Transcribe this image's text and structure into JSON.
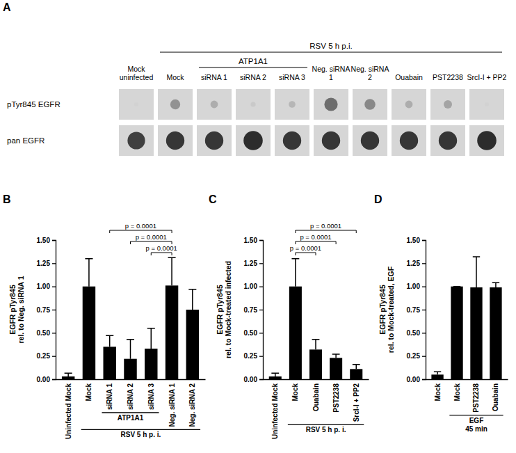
{
  "chart_data": [
    {
      "type": "dot_blot",
      "title": "A",
      "categories": [
        "Mock uninfected",
        "Mock",
        "siRNA 1",
        "siRNA 2",
        "siRNA 3",
        "Neg. siRNA 1",
        "Neg. siRNA 2",
        "Ouabain",
        "PST2238",
        "SrcI-I + PP2"
      ],
      "rows": [
        "pTyr845 EGFR",
        "pan EGFR"
      ],
      "cells": [
        [
          0.0,
          0.35,
          0.2,
          0.05,
          0.15,
          0.55,
          0.4,
          0.2,
          0.25,
          0.0
        ],
        [
          0.8,
          0.85,
          0.85,
          0.9,
          0.85,
          0.85,
          0.85,
          0.85,
          0.85,
          0.9
        ]
      ],
      "groups": [
        {
          "label": [
            "ATP1A1"
          ],
          "from": 2,
          "to": 4
        },
        {
          "label": [
            "RSV 5 h p.i."
          ],
          "from": 1,
          "to": 9
        }
      ]
    },
    {
      "type": "bar",
      "title": "B",
      "categories": [
        "Uninfected Mock",
        "Mock",
        "siRNA 1",
        "siRNA 2",
        "siRNA 3",
        "Neg. siRNA 1",
        "Neg. siRNA 2"
      ],
      "values": [
        0.03,
        1.0,
        0.35,
        0.22,
        0.33,
        1.01,
        0.75
      ],
      "errors": [
        0.035,
        0.3,
        0.12,
        0.21,
        0.22,
        0.3,
        0.22
      ],
      "color": "#000000",
      "ylim": [
        0,
        1.5
      ],
      "yticks": [
        {
          "value": 0,
          "label": "0.00"
        },
        {
          "value": 0.25,
          "label": "0.25"
        },
        {
          "value": 0.5,
          "label": "0.50"
        },
        {
          "value": 0.75,
          "label": "0.75"
        },
        {
          "value": 1,
          "label": "1.00"
        },
        {
          "value": 1.25,
          "label": "1.25"
        },
        {
          "value": 1.5,
          "label": "1.50"
        }
      ],
      "y_label": [
        "EGFR pTyr845",
        "rel. to Neg. siRNA 1"
      ],
      "groups": [
        {
          "label": [
            "ATP1A1"
          ],
          "from": 2,
          "to": 4
        },
        {
          "label": [
            "RSV 5 h p. i."
          ],
          "from": 1,
          "to": 6
        }
      ],
      "comparisons": [
        {
          "label": "p = 0.0001",
          "from": 4,
          "to": 5
        },
        {
          "label": "p = 0.0001",
          "from": 3,
          "to": 5
        },
        {
          "label": "p = 0.0001",
          "from": 2,
          "to": 5
        }
      ]
    },
    {
      "type": "bar",
      "title": "C",
      "categories": [
        "Uninfected Mock",
        "Mock",
        "Ouabain",
        "PST2238",
        "SrcI-I + PP2"
      ],
      "values": [
        0.03,
        1.0,
        0.32,
        0.23,
        0.11
      ],
      "errors": [
        0.035,
        0.3,
        0.11,
        0.04,
        0.05
      ],
      "color": "#000000",
      "ylim": [
        0,
        1.5
      ],
      "yticks": [
        {
          "value": 0,
          "label": "0.00"
        },
        {
          "value": 0.25,
          "label": "0.25"
        },
        {
          "value": 0.5,
          "label": "0.50"
        },
        {
          "value": 0.75,
          "label": "0.75"
        },
        {
          "value": 1,
          "label": "1.00"
        },
        {
          "value": 1.25,
          "label": "1.25"
        },
        {
          "value": 1.5,
          "label": "1.50"
        }
      ],
      "y_label": [
        "EGFR pTyr845",
        "rel. to Mock-treated infected"
      ],
      "groups": [
        {
          "label": [
            "RSV 5 h p. i."
          ],
          "from": 1,
          "to": 4
        }
      ],
      "comparisons": [
        {
          "label": "p = 0.0001",
          "from": 1,
          "to": 2
        },
        {
          "label": "p = 0.0001",
          "from": 1,
          "to": 3
        },
        {
          "label": "p = 0.0001",
          "from": 1,
          "to": 4
        }
      ]
    },
    {
      "type": "bar",
      "title": "D",
      "categories": [
        "Mock",
        "Mock",
        "PST2238",
        "Ouabain"
      ],
      "values": [
        0.05,
        1.0,
        0.99,
        0.99
      ],
      "errors": [
        0.03,
        0.0,
        0.33,
        0.05
      ],
      "color": "#000000",
      "ylim": [
        0,
        1.5
      ],
      "yticks": [
        {
          "value": 0,
          "label": "0.00"
        },
        {
          "value": 0.25,
          "label": "0.25"
        },
        {
          "value": 0.5,
          "label": "0.50"
        },
        {
          "value": 0.75,
          "label": "0.75"
        },
        {
          "value": 1,
          "label": "1.00"
        },
        {
          "value": 1.25,
          "label": "1.25"
        },
        {
          "value": 1.5,
          "label": "1.50"
        }
      ],
      "y_label": [
        "EGFR pTyr845",
        "rel. to Mock-treated, EGF"
      ],
      "groups": [
        {
          "label": [
            "EGF",
            "45 min"
          ],
          "from": 1,
          "to": 3
        }
      ]
    }
  ]
}
